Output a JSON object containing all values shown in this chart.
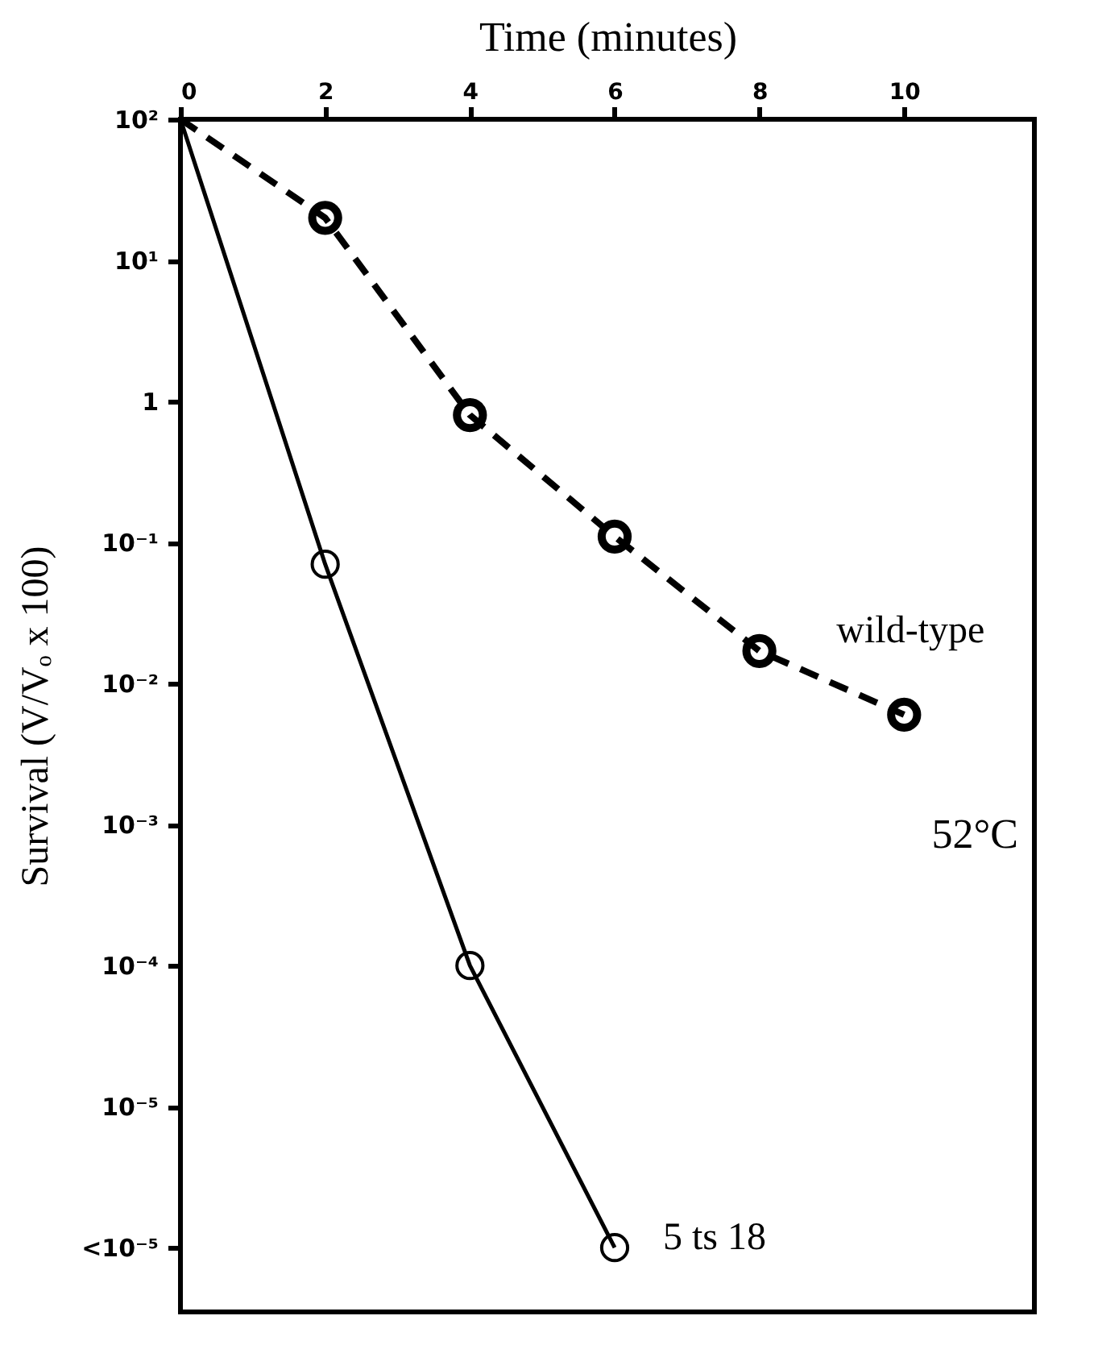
{
  "chart_data": {
    "type": "line",
    "xlabel": "Time (minutes)",
    "ylabel": "Survival (V/Vₒ x 100)",
    "log": "y",
    "xlim": [
      0,
      11.8
    ],
    "xticks": [
      0,
      2,
      4,
      6,
      8,
      10
    ],
    "ylim": [
      3.5e-07,
      100
    ],
    "yticks": [
      {
        "value": 100,
        "label": "10²"
      },
      {
        "value": 10,
        "label": "10¹"
      },
      {
        "value": 1,
        "label": "1"
      },
      {
        "value": 0.1,
        "label": "10⁻¹"
      },
      {
        "value": 0.01,
        "label": "10⁻²"
      },
      {
        "value": 0.001,
        "label": "10⁻³"
      },
      {
        "value": 0.0001,
        "label": "10⁻⁴"
      },
      {
        "value": 1e-05,
        "label": "10⁻⁵"
      },
      {
        "value": 1e-06,
        "label": "<10⁻⁵"
      }
    ],
    "marker": "circle",
    "grid": false,
    "series": [
      {
        "name": "wild-type",
        "color": "#000000",
        "line_style": "dashed",
        "x": [
          0,
          2,
          4,
          6,
          8,
          10
        ],
        "values": [
          100,
          20,
          0.8,
          0.11,
          0.017,
          0.006
        ]
      },
      {
        "name": "5 ts 18",
        "color": "#000000",
        "line_style": "solid",
        "x": [
          0,
          2,
          4,
          6
        ],
        "values": [
          100,
          0.07,
          0.0001,
          1e-06
        ]
      }
    ],
    "annotations": [
      "52°C"
    ]
  }
}
